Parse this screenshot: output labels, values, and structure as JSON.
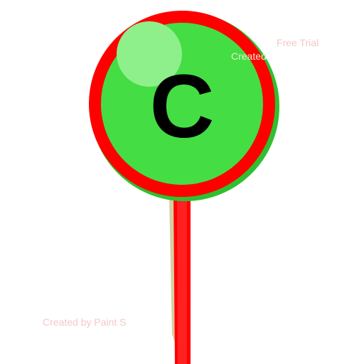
{
  "pin": {
    "letter": "C",
    "colors": {
      "ring": "#ff0000",
      "fill": "#44dd44",
      "shadow": "#2fc02f",
      "highlight": "#8ef08a",
      "stick": "#ff0000",
      "stick_shadow": "#d4cfa3",
      "letter": "#000000"
    }
  },
  "watermarks": {
    "free_trial": "Free Trial",
    "created_top": "Created",
    "created_bottom": "Created by Paint S"
  }
}
